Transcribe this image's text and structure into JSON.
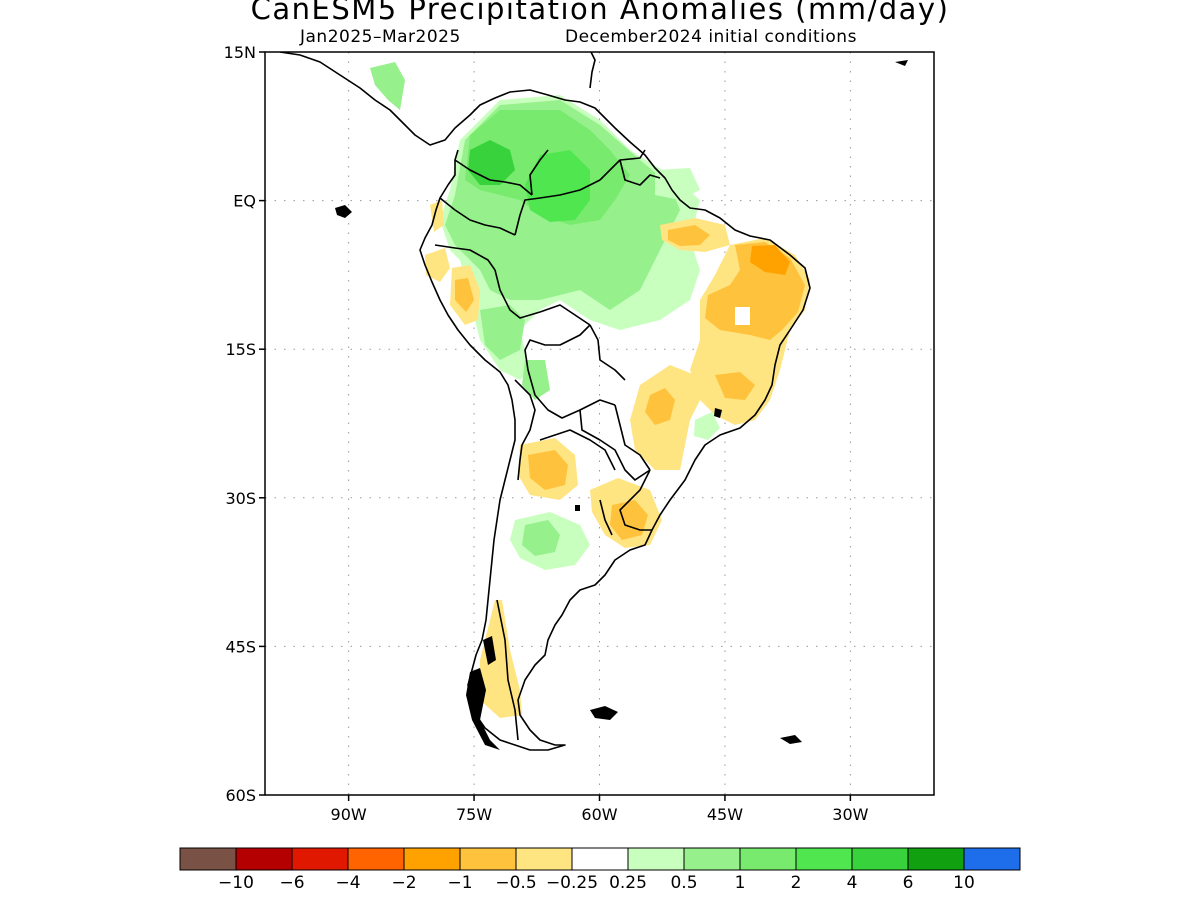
{
  "title": "CanESM5 Precipitation Anomalies (mm/day)",
  "subtitle_left": "Jan2025–Mar2025",
  "subtitle_right": "December2024 initial conditions",
  "map": {
    "region": "South America",
    "lon_range": [
      -100,
      -20
    ],
    "lat_range": [
      -60,
      15
    ],
    "grid": "dotted",
    "lat_ticks": [
      {
        "value": 15,
        "label": "15N"
      },
      {
        "value": 0,
        "label": "EQ"
      },
      {
        "value": -15,
        "label": "15S"
      },
      {
        "value": -30,
        "label": "30S"
      },
      {
        "value": -45,
        "label": "45S"
      },
      {
        "value": -60,
        "label": "60S"
      }
    ],
    "lon_ticks": [
      {
        "value": -90,
        "label": "90W"
      },
      {
        "value": -75,
        "label": "75W"
      },
      {
        "value": -60,
        "label": "60W"
      },
      {
        "value": -45,
        "label": "45W"
      },
      {
        "value": -30,
        "label": "30W"
      }
    ]
  },
  "colorbar": {
    "colors": [
      "#7a5145",
      "#b40000",
      "#e11800",
      "#ff6400",
      "#ffa200",
      "#ffc23c",
      "#ffe482",
      "#ffffff",
      "#c8ffbe",
      "#96f08c",
      "#78eb6e",
      "#50e650",
      "#37d23c",
      "#10a010",
      "#1e6eeb"
    ],
    "labels": [
      "−10",
      "−6",
      "−4",
      "−2",
      "−1",
      "−0.5",
      "−0.25",
      "0.25",
      "0.5",
      "1",
      "2",
      "4",
      "6",
      "10"
    ]
  }
}
